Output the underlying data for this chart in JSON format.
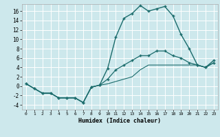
{
  "title": "",
  "xlabel": "Humidex (Indice chaleur)",
  "ylabel": "",
  "bg_color": "#cde8ec",
  "grid_color": "#ffffff",
  "line_color": "#1a6b6b",
  "xlim": [
    -0.5,
    23.5
  ],
  "ylim": [
    -5,
    17.5
  ],
  "xticks": [
    0,
    1,
    2,
    3,
    4,
    5,
    6,
    7,
    8,
    9,
    10,
    11,
    12,
    13,
    14,
    15,
    16,
    17,
    18,
    19,
    20,
    21,
    22,
    23
  ],
  "yticks": [
    -4,
    -2,
    0,
    2,
    4,
    6,
    8,
    10,
    12,
    14,
    16
  ],
  "series1_x": [
    0,
    1,
    2,
    3,
    4,
    5,
    6,
    7,
    8,
    9,
    10,
    11,
    12,
    13,
    14,
    15,
    16,
    17,
    18,
    19,
    20,
    21,
    22,
    23
  ],
  "series1_y": [
    0.5,
    -0.5,
    -1.5,
    -1.5,
    -2.5,
    -2.5,
    -2.5,
    -3.5,
    -0.2,
    0.2,
    3.8,
    10.5,
    14.5,
    15.5,
    17.2,
    16.0,
    16.5,
    17.0,
    15.0,
    11.0,
    8.0,
    4.5,
    4.0,
    5.5
  ],
  "series2_x": [
    0,
    1,
    2,
    3,
    4,
    5,
    6,
    7,
    8,
    9,
    10,
    11,
    12,
    13,
    14,
    15,
    16,
    17,
    18,
    19,
    20,
    21,
    22,
    23
  ],
  "series2_y": [
    0.5,
    -0.5,
    -1.5,
    -1.5,
    -2.5,
    -2.5,
    -2.5,
    -3.5,
    -0.2,
    0.2,
    1.5,
    3.5,
    4.5,
    5.5,
    6.5,
    6.5,
    7.5,
    7.5,
    6.5,
    6.0,
    5.0,
    4.5,
    4.0,
    5.0
  ],
  "series3_x": [
    0,
    1,
    2,
    3,
    4,
    5,
    6,
    7,
    8,
    9,
    10,
    11,
    12,
    13,
    14,
    15,
    16,
    17,
    18,
    19,
    20,
    21,
    22,
    23
  ],
  "series3_y": [
    0.5,
    -0.5,
    -1.5,
    -1.5,
    -2.5,
    -2.5,
    -2.5,
    -3.5,
    -0.2,
    0.2,
    0.5,
    1.0,
    1.5,
    2.0,
    3.5,
    4.5,
    4.5,
    4.5,
    4.5,
    4.5,
    4.5,
    4.5,
    4.0,
    5.0
  ]
}
